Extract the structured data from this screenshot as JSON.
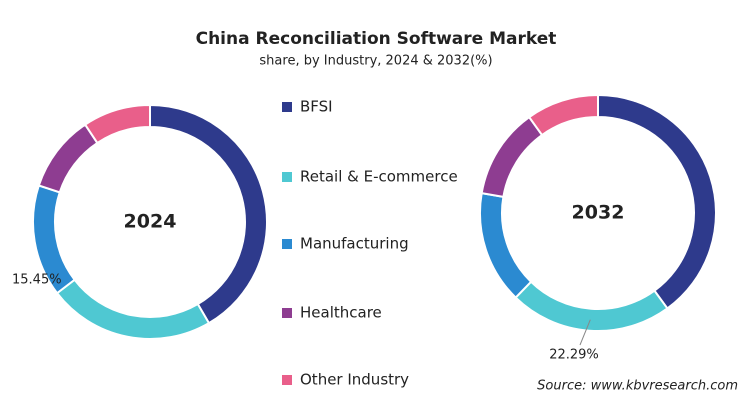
{
  "title": "China Reconciliation Software Market",
  "subtitle": "share, by Industry, 2024 & 2032(%)",
  "source": "Source: www.kbvresearch.com",
  "chart_data": [
    {
      "type": "donut",
      "center_label": "2024",
      "categories": [
        "BFSI",
        "Retail & E-commerce",
        "Manufacturing",
        "Healthcare",
        "Other Industry"
      ],
      "values": [
        41.6,
        23.0,
        15.45,
        10.6,
        9.35
      ],
      "value_labels": [
        null,
        null,
        "15.45%",
        null,
        null
      ],
      "colors": [
        "#2e3a8c",
        "#4fc8d2",
        "#2b8ad1",
        "#8e3d91",
        "#e95f8a"
      ]
    },
    {
      "type": "donut",
      "center_label": "2032",
      "categories": [
        "BFSI",
        "Retail & E-commerce",
        "Manufacturing",
        "Healthcare",
        "Other Industry"
      ],
      "values": [
        40.0,
        22.29,
        15.4,
        12.4,
        9.91
      ],
      "value_labels": [
        null,
        "22.29%",
        null,
        null,
        null
      ],
      "colors": [
        "#2e3a8c",
        "#4fc8d2",
        "#2b8ad1",
        "#8e3d91",
        "#e95f8a"
      ]
    }
  ]
}
